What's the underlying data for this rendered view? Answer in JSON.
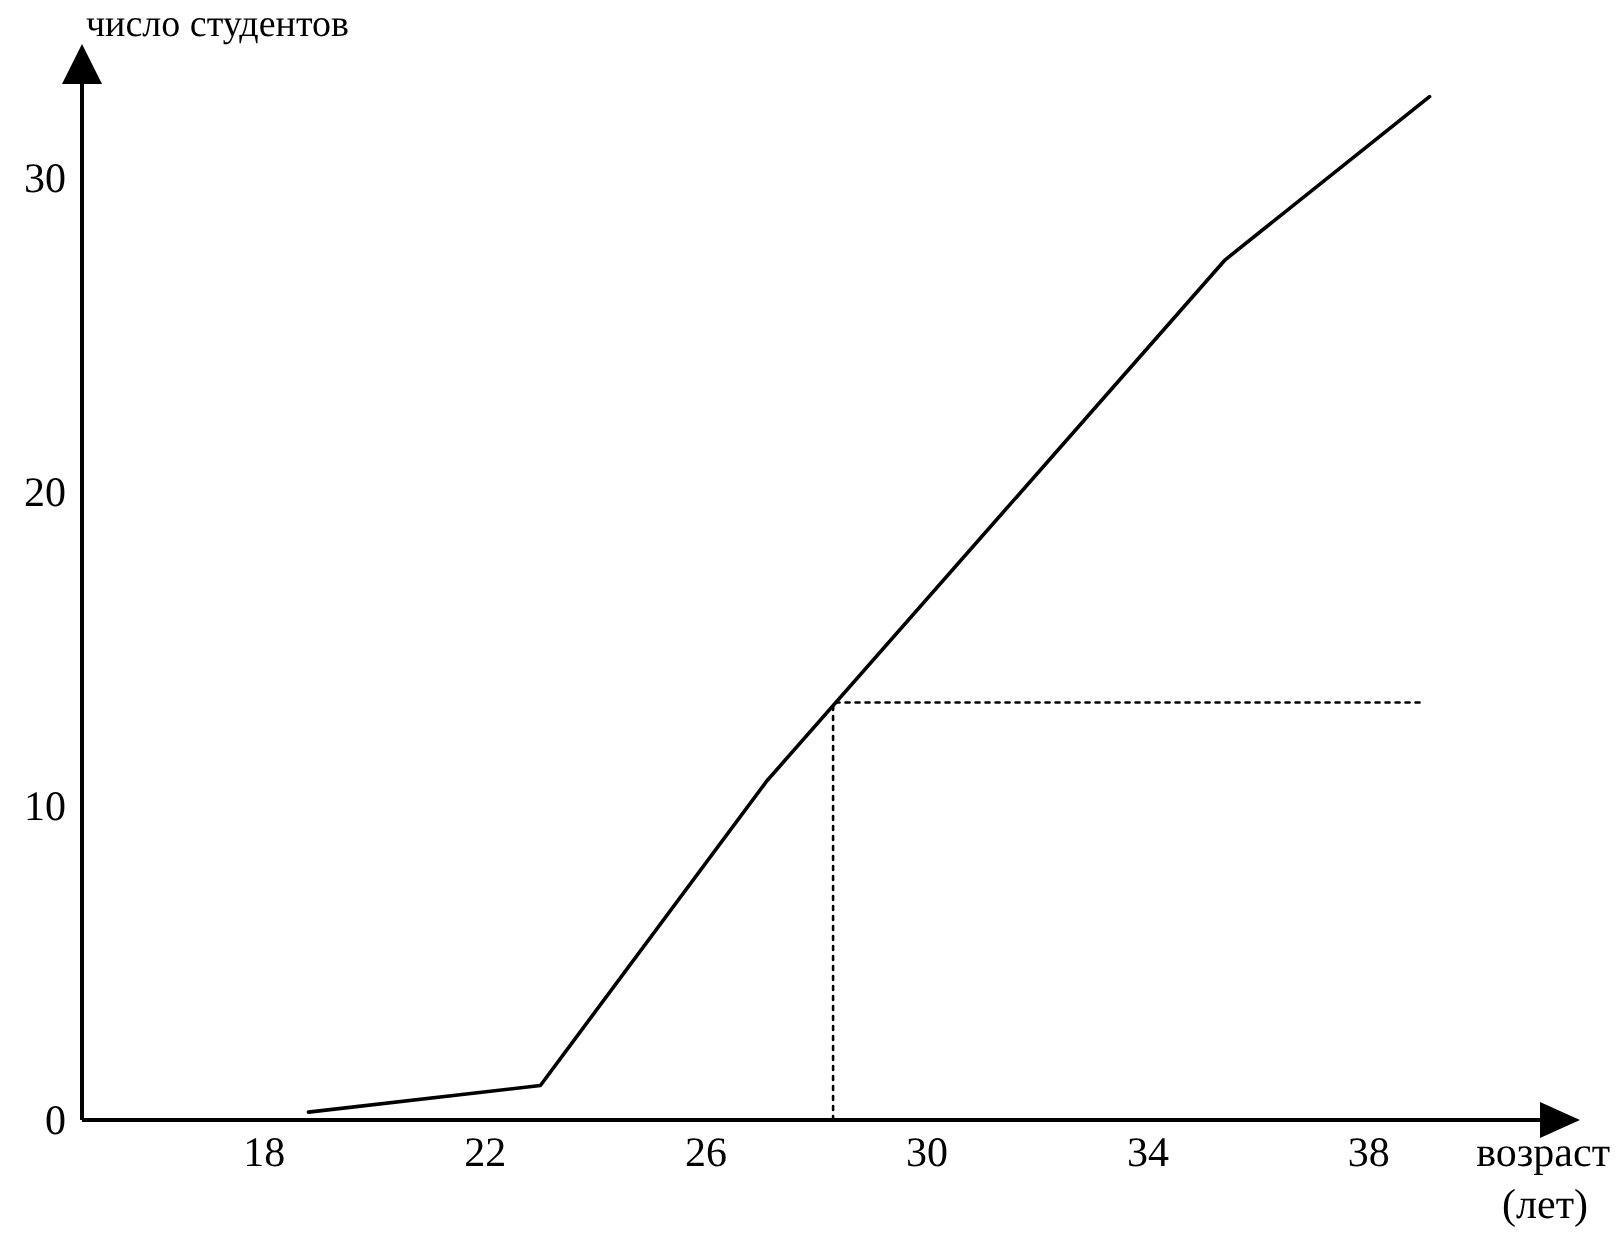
{
  "chart_data": {
    "type": "line",
    "ylabel": "число студентов",
    "xlabel": "возраст (лет)",
    "xlim": [
      14.7,
      41.1
    ],
    "ylim": [
      0,
      33
    ],
    "xticks": [
      18,
      22,
      26,
      30,
      34,
      38
    ],
    "yticks": [
      0,
      10,
      20,
      30
    ],
    "grid": false,
    "marker": "none",
    "series": [
      {
        "color": "#000000",
        "x": [
          18.8,
          23.0,
          27.1,
          35.4,
          39.1
        ],
        "values": [
          0.25,
          1.1,
          10.8,
          27.4,
          32.6
        ],
        "line_style": "solid"
      },
      {
        "color": "#000000",
        "x": [
          28.3,
          28.3,
          39.0
        ],
        "values": [
          0,
          13.3,
          13.3
        ],
        "line_style": "dotted"
      }
    ]
  }
}
